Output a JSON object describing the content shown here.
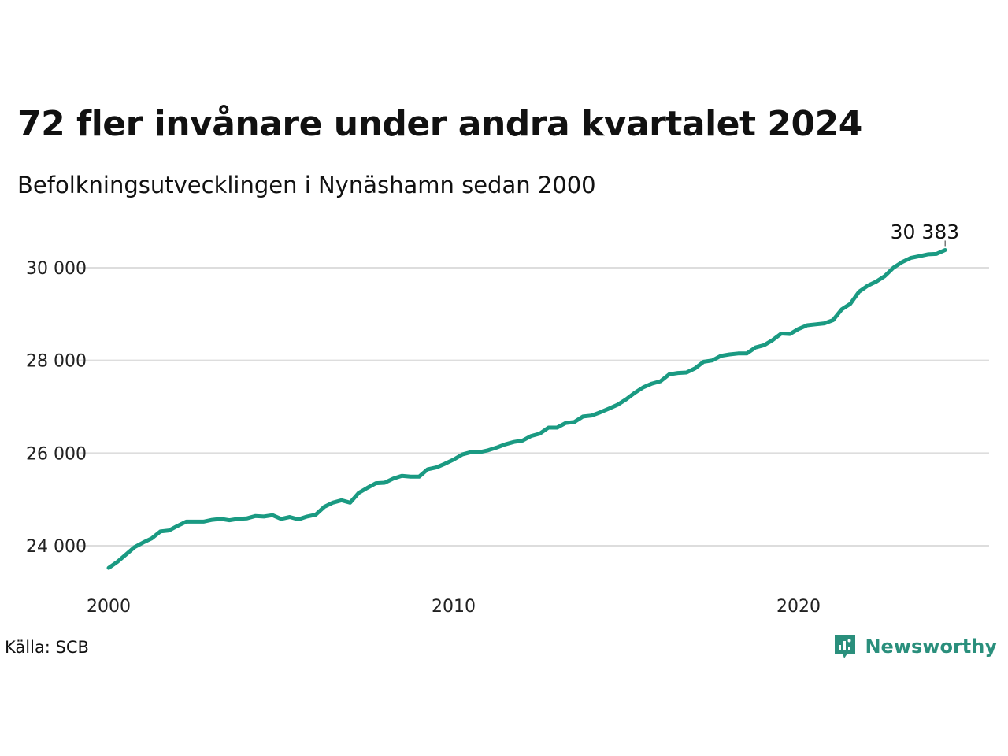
{
  "title": "72 fler invånare under andra kvartalet 2024",
  "subtitle": "Befolkningsutvecklingen i Nynäshamn sedan 2000",
  "source": "Källa: SCB",
  "brand": "Newsworthy",
  "colors": {
    "line": "#1a9a82",
    "grid": "#dddddd",
    "brand": "#2a8f7c"
  },
  "chart_data": {
    "type": "line",
    "x_start": 2000.0,
    "x_step": 0.25,
    "xlim": [
      2000.0,
      2025.0
    ],
    "x_ticks": [
      2000,
      2010,
      2020
    ],
    "x_tick_labels": [
      "2000",
      "2010",
      "2020"
    ],
    "ylim": [
      23300,
      30750
    ],
    "y_ticks": [
      24000,
      26000,
      28000,
      30000
    ],
    "y_tick_labels": [
      "24 000",
      "26 000",
      "28 000",
      "30 000"
    ],
    "grid": true,
    "end_label": "30 383",
    "values": [
      23520,
      23650,
      23810,
      23970,
      24070,
      24160,
      24310,
      24330,
      24430,
      24520,
      24520,
      24520,
      24560,
      24580,
      24550,
      24580,
      24590,
      24640,
      24630,
      24660,
      24580,
      24620,
      24570,
      24630,
      24670,
      24840,
      24930,
      24980,
      24930,
      25140,
      25250,
      25350,
      25360,
      25450,
      25510,
      25490,
      25490,
      25650,
      25690,
      25770,
      25860,
      25970,
      26020,
      26020,
      26060,
      26120,
      26190,
      26240,
      26270,
      26370,
      26420,
      26550,
      26550,
      26650,
      26670,
      26790,
      26810,
      26880,
      26960,
      27040,
      27160,
      27300,
      27420,
      27500,
      27550,
      27700,
      27730,
      27740,
      27830,
      27970,
      28000,
      28100,
      28130,
      28150,
      28150,
      28280,
      28330,
      28440,
      28580,
      28570,
      28680,
      28760,
      28780,
      28800,
      28870,
      29100,
      29220,
      29480,
      29610,
      29700,
      29820,
      30000,
      30120,
      30210,
      30250,
      30290,
      30300,
      30383
    ]
  }
}
